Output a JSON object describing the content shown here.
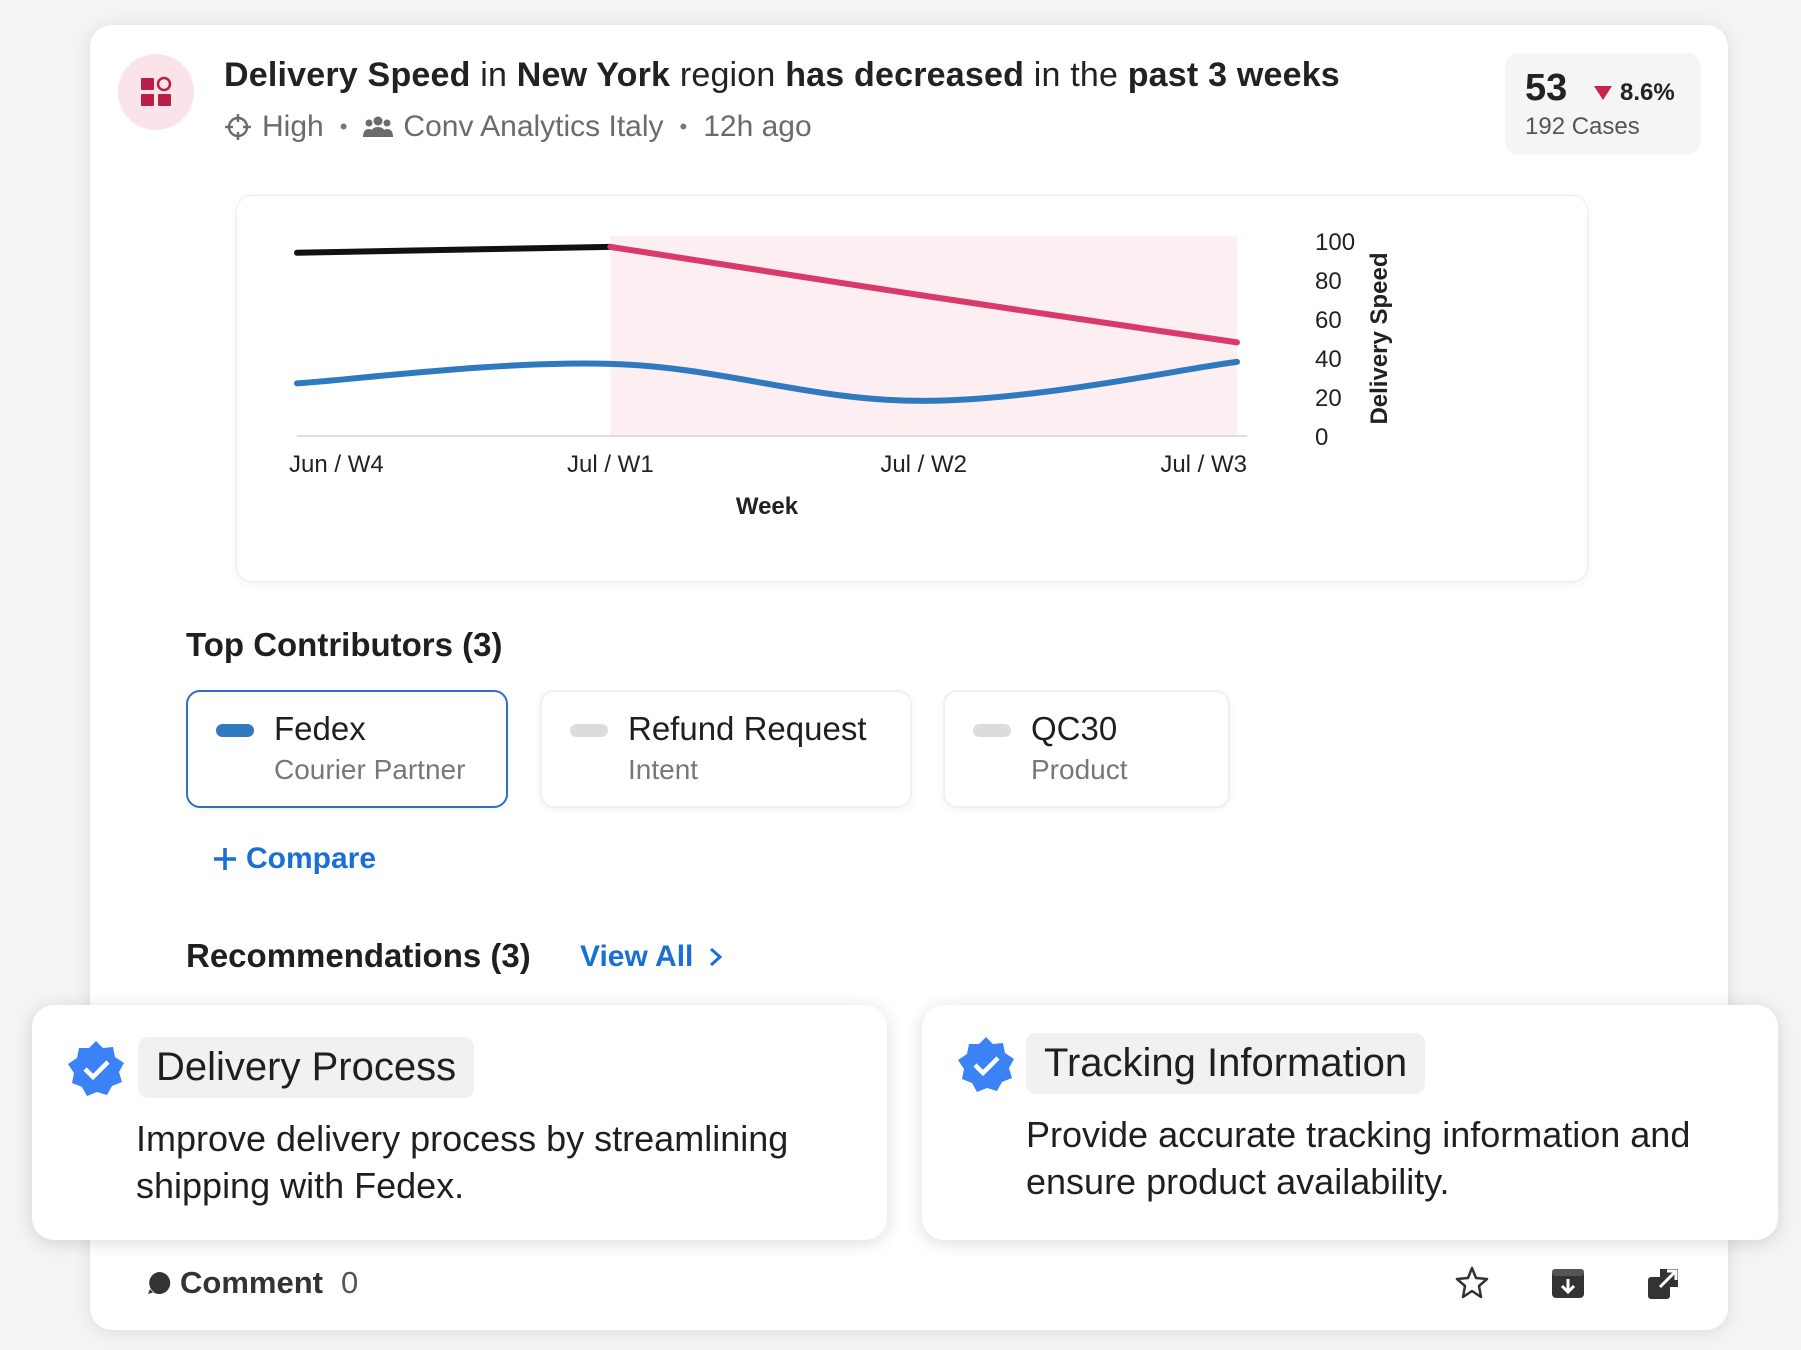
{
  "insight": {
    "title_parts": [
      {
        "text": "Delivery Speed",
        "bold": true
      },
      {
        "text": " in ",
        "bold": false
      },
      {
        "text": "New York",
        "bold": true
      },
      {
        "text": " region ",
        "bold": false
      },
      {
        "text": "has decreased",
        "bold": true
      },
      {
        "text": " in the ",
        "bold": false
      },
      {
        "text": "past 3 weeks",
        "bold": true
      }
    ],
    "priority": "High",
    "team": "Conv Analytics Italy",
    "time_ago": "12h ago",
    "icon": "dashboard-grid-icon"
  },
  "kpi": {
    "value": "53",
    "change": "8.6%",
    "change_direction": "down",
    "cases": "192 Cases",
    "down_color": "#c8234f"
  },
  "chart_data": {
    "type": "line",
    "xlabel": "Week",
    "ylabel": "Delivery Speed",
    "x": [
      "Jun / W4",
      "Jul / W1",
      "Jul / W2",
      "Jul / W3"
    ],
    "ylim": [
      0,
      100
    ],
    "yticks": [
      0,
      20,
      40,
      60,
      80,
      100
    ],
    "y_axis_position": "right",
    "highlight_range": [
      "Jul / W1",
      "Jul / W3"
    ],
    "series": [
      {
        "values": [
          94,
          97,
          72,
          48
        ],
        "color_before": "#111111",
        "color_highlight": "#d93a6a"
      },
      {
        "values": [
          27,
          37,
          18,
          38
        ],
        "color": "#2f7abf"
      }
    ]
  },
  "contributors": {
    "title": "Top Contributors (3)",
    "items": [
      {
        "name": "Fedex",
        "type": "Courier Partner",
        "active": true,
        "swatch": "#2f7abf"
      },
      {
        "name": "Refund Request",
        "type": "Intent",
        "active": false,
        "swatch": "#dcdcdc"
      },
      {
        "name": "QC30",
        "type": "Product",
        "active": false,
        "swatch": "#dcdcdc"
      }
    ],
    "compare_label": "Compare"
  },
  "recommendations": {
    "title": "Recommendations (3)",
    "view_all_label": "View All",
    "items": [
      {
        "title": "Delivery Process",
        "description": "Improve delivery process by streamlining shipping with Fedex."
      },
      {
        "title": "Tracking Information",
        "description": "Provide accurate tracking information and ensure product availability."
      }
    ]
  },
  "footer": {
    "comment_label": "Comment",
    "comment_count": "0",
    "icons": [
      "star-icon",
      "download-icon",
      "open-external-icon"
    ]
  },
  "colors": {
    "accent": "#1a6fd6",
    "highlight_band": "#fdeef2",
    "verified_badge": "#3b82f6"
  }
}
